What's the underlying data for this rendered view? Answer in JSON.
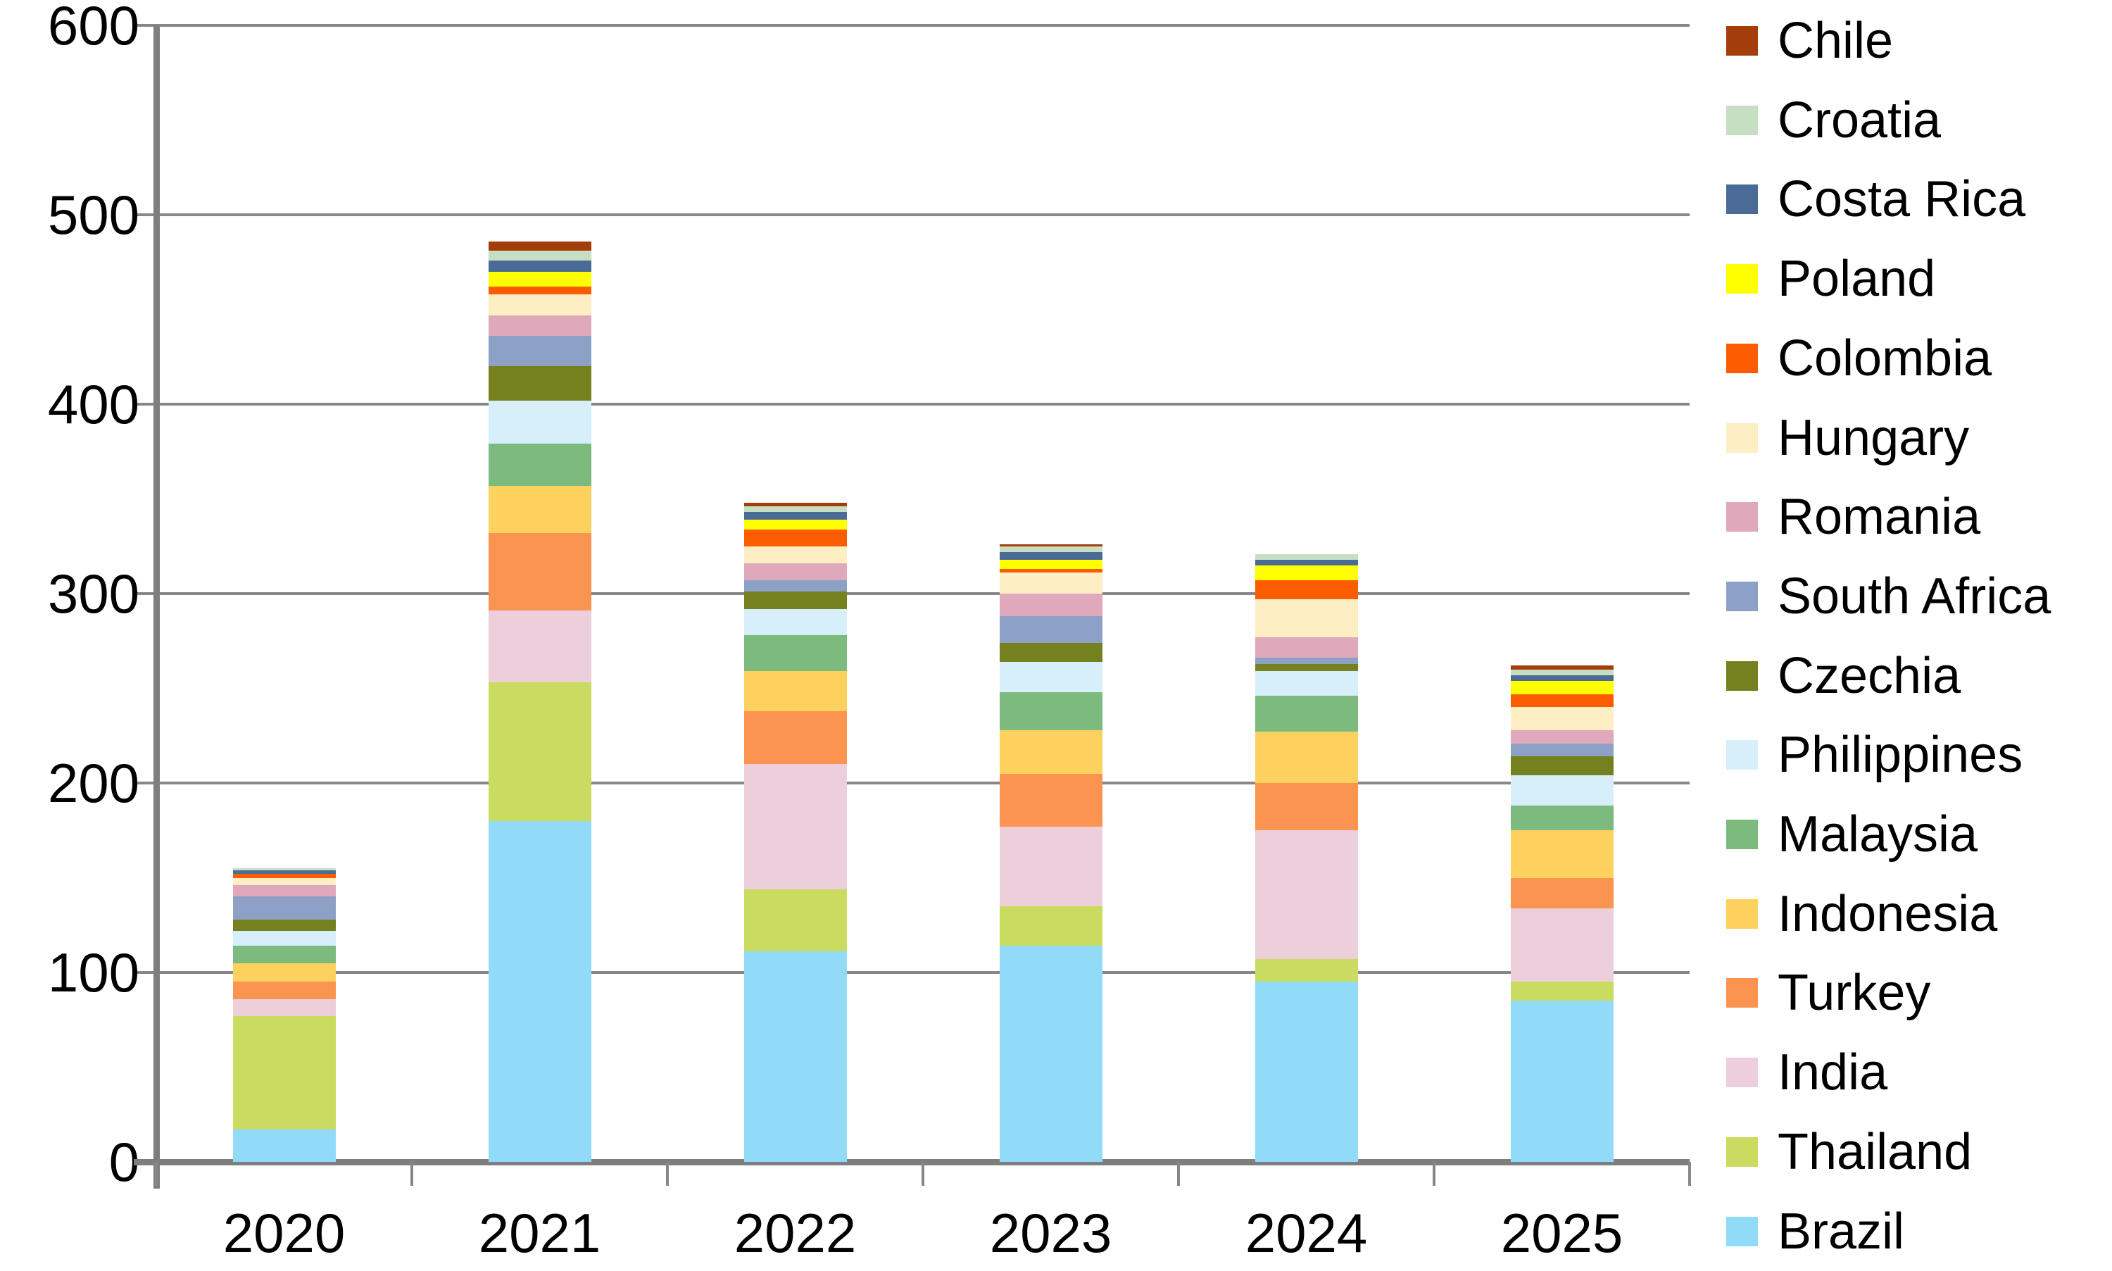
{
  "figure": {
    "background": "#FFFFFF",
    "gridline_color": "#878787",
    "axis_color": "#7E7E7E",
    "text_color": "#000000"
  },
  "y_axis": {
    "tick_labels": [
      "0",
      "100",
      "200",
      "300",
      "400",
      "500",
      "600"
    ],
    "min": 0,
    "max": 600,
    "step": 100
  },
  "x_axis": {
    "categories": [
      "2020",
      "2021",
      "2022",
      "2023",
      "2024",
      "2025"
    ]
  },
  "chart_data": {
    "type": "bar",
    "stacked": true,
    "title": "",
    "xlabel": "",
    "ylabel": "",
    "ylim": [
      0,
      600
    ],
    "grid": true,
    "legend_position": "right",
    "legend_order": "reverse_of_stacking",
    "categories": [
      "2020",
      "2021",
      "2022",
      "2023",
      "2024",
      "2025"
    ],
    "series": [
      {
        "name": "Brazil",
        "color": "#92DBF8",
        "values": [
          17,
          180,
          111,
          114,
          95,
          85
        ]
      },
      {
        "name": "Thailand",
        "color": "#C9DC60",
        "values": [
          60,
          73,
          33,
          21,
          12,
          10
        ]
      },
      {
        "name": "India",
        "color": "#EDCEDB",
        "values": [
          9,
          38,
          66,
          42,
          68,
          39
        ]
      },
      {
        "name": "Turkey",
        "color": "#FB9351",
        "values": [
          9,
          41,
          28,
          28,
          25,
          16
        ]
      },
      {
        "name": "Indonesia",
        "color": "#FDD15E",
        "values": [
          10,
          25,
          21,
          23,
          27,
          25
        ]
      },
      {
        "name": "Malaysia",
        "color": "#7CBA7D",
        "values": [
          9,
          22,
          19,
          20,
          19,
          13
        ]
      },
      {
        "name": "Philippines",
        "color": "#D6EFFB",
        "values": [
          8,
          23,
          14,
          16,
          13,
          16
        ]
      },
      {
        "name": "Czechia",
        "color": "#75801E",
        "values": [
          6,
          18,
          9,
          10,
          4,
          10
        ]
      },
      {
        "name": "South Africa",
        "color": "#8DA1C6",
        "values": [
          12,
          16,
          6,
          14,
          3,
          7
        ]
      },
      {
        "name": "Romania",
        "color": "#E0A9BB",
        "values": [
          6,
          11,
          9,
          12,
          11,
          7
        ]
      },
      {
        "name": "Hungary",
        "color": "#FDEEC4",
        "values": [
          4,
          11,
          9,
          11,
          20,
          12
        ]
      },
      {
        "name": "Colombia",
        "color": "#FB5C00",
        "values": [
          2,
          4,
          9,
          2,
          10,
          7
        ]
      },
      {
        "name": "Poland",
        "color": "#FFFF00",
        "values": [
          0,
          8,
          5,
          5,
          8,
          7
        ]
      },
      {
        "name": "Costa Rica",
        "color": "#4A6B96",
        "values": [
          2,
          6,
          4,
          4,
          3,
          3
        ]
      },
      {
        "name": "Croatia",
        "color": "#C6DFC3",
        "values": [
          1,
          5,
          3,
          3,
          3,
          3
        ]
      },
      {
        "name": "Chile",
        "color": "#A33D0A",
        "values": [
          0,
          5,
          2,
          1,
          0,
          2
        ]
      }
    ],
    "stack_totals": [
      155,
      486,
      348,
      326,
      321,
      262
    ]
  }
}
